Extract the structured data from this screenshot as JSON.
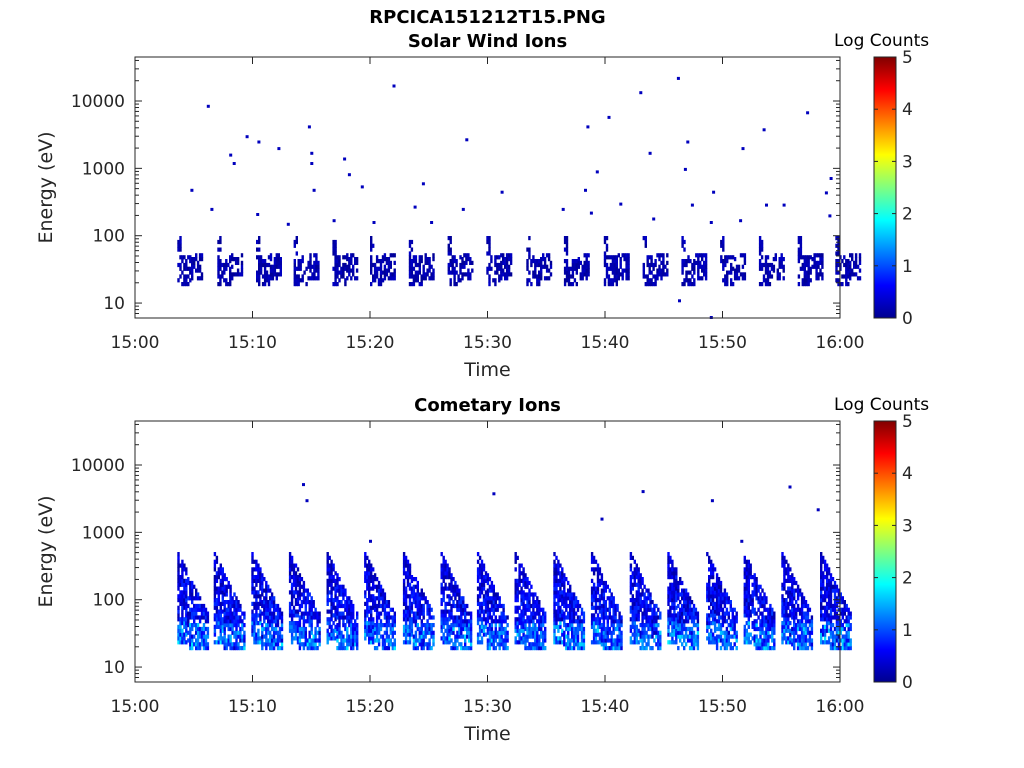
{
  "figure": {
    "filename": "RPCICA151212T15.PNG"
  },
  "colorbar": {
    "title": "Log Counts",
    "ticks": [
      "0",
      "1",
      "2",
      "3",
      "4",
      "5"
    ],
    "range": [
      0,
      5
    ],
    "colormap": "jet"
  },
  "chart_data": [
    {
      "type": "heatmap",
      "title": "Solar Wind Ions",
      "xlabel": "Time",
      "ylabel": "Energy (eV)",
      "x_range": [
        "15:00",
        "16:00"
      ],
      "x_ticks": [
        "15:00",
        "15:10",
        "15:20",
        "15:30",
        "15:40",
        "15:50",
        "16:00"
      ],
      "y_scale": "log",
      "y_range": [
        6,
        45000
      ],
      "y_ticks": [
        "10",
        "100",
        "1000",
        "10000"
      ],
      "color_label": "Log Counts",
      "burst_times_min": [
        3.6,
        7.0,
        10.3,
        13.5,
        16.8,
        20.0,
        23.3,
        26.6,
        29.9,
        33.3,
        36.5,
        39.9,
        43.2,
        46.5,
        49.8,
        53.1,
        56.4,
        59.6
      ],
      "burst_energy_range_eV": [
        18,
        110
      ],
      "burst_log_counts": [
        0,
        0.4
      ],
      "scattered_points": [
        {
          "t": 6.2,
          "e": 8500
        },
        {
          "t": 22.0,
          "e": 17000
        },
        {
          "t": 46.2,
          "e": 22000
        },
        {
          "t": 43.0,
          "e": 13500
        },
        {
          "t": 57.2,
          "e": 6800
        },
        {
          "t": 14.8,
          "e": 4200
        },
        {
          "t": 38.5,
          "e": 4200
        },
        {
          "t": 40.3,
          "e": 5800
        },
        {
          "t": 9.5,
          "e": 3000
        },
        {
          "t": 10.5,
          "e": 2500
        },
        {
          "t": 12.2,
          "e": 2000
        },
        {
          "t": 28.2,
          "e": 2700
        },
        {
          "t": 47.0,
          "e": 2500
        },
        {
          "t": 51.7,
          "e": 2000
        },
        {
          "t": 53.5,
          "e": 3800
        },
        {
          "t": 8.1,
          "e": 1600
        },
        {
          "t": 8.4,
          "e": 1200
        },
        {
          "t": 15.0,
          "e": 1700
        },
        {
          "t": 15.0,
          "e": 1200
        },
        {
          "t": 17.8,
          "e": 1400
        },
        {
          "t": 18.2,
          "e": 820
        },
        {
          "t": 39.3,
          "e": 900
        },
        {
          "t": 43.8,
          "e": 1700
        },
        {
          "t": 46.8,
          "e": 980
        },
        {
          "t": 59.2,
          "e": 720
        },
        {
          "t": 4.8,
          "e": 480
        },
        {
          "t": 15.2,
          "e": 480
        },
        {
          "t": 19.3,
          "e": 540
        },
        {
          "t": 24.5,
          "e": 600
        },
        {
          "t": 31.2,
          "e": 450
        },
        {
          "t": 38.3,
          "e": 480
        },
        {
          "t": 49.2,
          "e": 450
        },
        {
          "t": 58.8,
          "e": 440
        },
        {
          "t": 6.5,
          "e": 250
        },
        {
          "t": 23.8,
          "e": 270
        },
        {
          "t": 27.9,
          "e": 250
        },
        {
          "t": 36.4,
          "e": 250
        },
        {
          "t": 38.8,
          "e": 220
        },
        {
          "t": 41.3,
          "e": 300
        },
        {
          "t": 47.4,
          "e": 290
        },
        {
          "t": 53.7,
          "e": 290
        },
        {
          "t": 55.2,
          "e": 290
        },
        {
          "t": 59.1,
          "e": 200
        },
        {
          "t": 10.4,
          "e": 210
        },
        {
          "t": 13.0,
          "e": 150
        },
        {
          "t": 16.9,
          "e": 170
        },
        {
          "t": 20.3,
          "e": 160
        },
        {
          "t": 25.2,
          "e": 160
        },
        {
          "t": 44.1,
          "e": 180
        },
        {
          "t": 49.0,
          "e": 160
        },
        {
          "t": 51.5,
          "e": 170
        },
        {
          "t": 46.3,
          "e": 11
        },
        {
          "t": 49.0,
          "e": 6.2
        }
      ]
    },
    {
      "type": "heatmap",
      "title": "Cometary Ions",
      "xlabel": "Time",
      "ylabel": "Energy (eV)",
      "x_range": [
        "15:00",
        "16:00"
      ],
      "x_ticks": [
        "15:00",
        "15:10",
        "15:20",
        "15:30",
        "15:40",
        "15:50",
        "16:00"
      ],
      "y_scale": "log",
      "y_range": [
        6,
        45000
      ],
      "y_ticks": [
        "10",
        "100",
        "1000",
        "10000"
      ],
      "color_label": "Log Counts",
      "burst_times_min": [
        3.6,
        6.7,
        9.9,
        13.1,
        16.3,
        19.5,
        22.8,
        26.0,
        29.1,
        32.3,
        35.6,
        38.8,
        42.1,
        45.3,
        48.6,
        51.8,
        55.0,
        58.3
      ],
      "burst_energy_range_eV": [
        18,
        450
      ],
      "burst_log_counts": [
        0,
        2.0
      ],
      "scattered_points": [
        {
          "t": 14.3,
          "e": 5200
        },
        {
          "t": 14.6,
          "e": 3000
        },
        {
          "t": 30.5,
          "e": 3800
        },
        {
          "t": 43.2,
          "e": 4100
        },
        {
          "t": 49.1,
          "e": 3000
        },
        {
          "t": 55.7,
          "e": 4800
        },
        {
          "t": 58.1,
          "e": 2200
        },
        {
          "t": 39.7,
          "e": 1600
        },
        {
          "t": 20.0,
          "e": 750
        },
        {
          "t": 51.6,
          "e": 750
        }
      ]
    }
  ]
}
